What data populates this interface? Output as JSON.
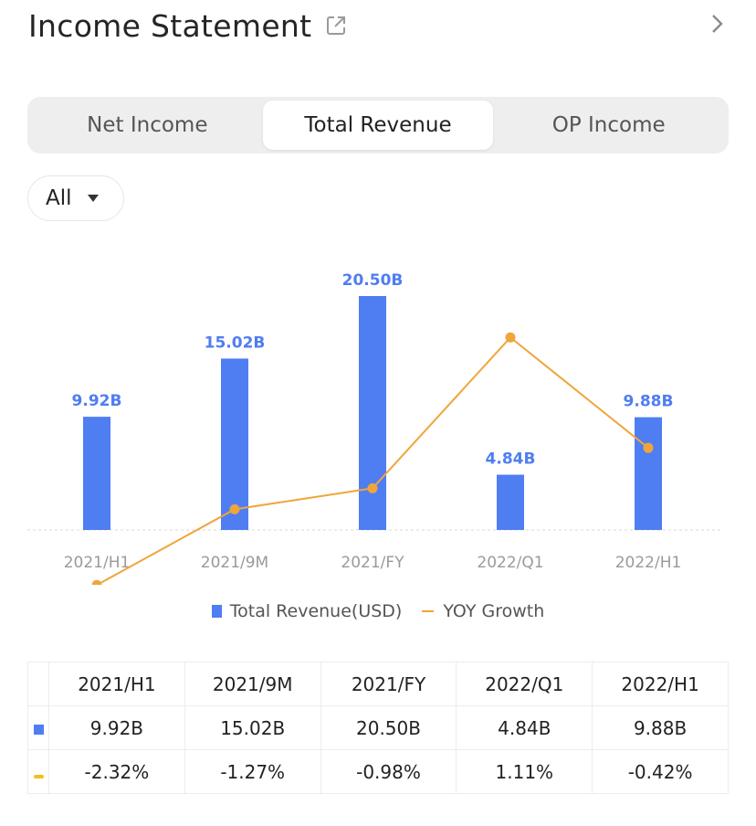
{
  "header": {
    "title": "Income Statement"
  },
  "tabs": [
    {
      "label": "Net Income",
      "active": false
    },
    {
      "label": "Total Revenue",
      "active": true
    },
    {
      "label": "OP Income",
      "active": false
    }
  ],
  "filter": {
    "selected": "All"
  },
  "colors": {
    "bar": "#4f7df2",
    "line": "#f0a53a",
    "negative": "#e24b4b",
    "positive": "#35a555"
  },
  "chart_data": {
    "type": "bar",
    "categories": [
      "2021/H1",
      "2021/9M",
      "2021/FY",
      "2022/Q1",
      "2022/H1"
    ],
    "series": [
      {
        "name": "Total Revenue(USD)",
        "type": "bar",
        "values": [
          9.92,
          15.02,
          20.5,
          4.84,
          9.88
        ],
        "labels": [
          "9.92B",
          "15.02B",
          "20.50B",
          "4.84B",
          "9.88B"
        ]
      },
      {
        "name": "YOY Growth",
        "type": "line",
        "values": [
          -2.32,
          -1.27,
          -0.98,
          1.11,
          -0.42
        ]
      }
    ],
    "legend": "bottom-center",
    "grid": false
  },
  "table": {
    "headers": [
      "2021/H1",
      "2021/9M",
      "2021/FY",
      "2022/Q1",
      "2022/H1"
    ],
    "revenue": [
      "9.92B",
      "15.02B",
      "20.50B",
      "4.84B",
      "9.88B"
    ],
    "yoy": [
      "-2.32%",
      "-1.27%",
      "-0.98%",
      "1.11%",
      "-0.42%"
    ]
  }
}
